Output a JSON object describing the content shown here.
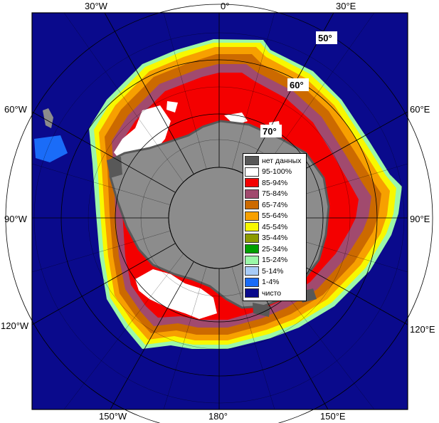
{
  "longitude_labels": {
    "w30": "30°W",
    "zero": "0°",
    "e30": "30°E",
    "w60": "60°W",
    "e60": "60°E",
    "w90": "90°W",
    "e90": "90°E",
    "w120": "120°W",
    "e120": "120°E",
    "w150": "150°W",
    "s180": "180°",
    "e150": "150°E"
  },
  "latitude_labels": {
    "lat50": "50°",
    "lat60": "60°",
    "lat70": "70°"
  },
  "colors": {
    "ocean": "#0a0a8c",
    "land": "#8c8c8c",
    "no_data": "#585858",
    "ice_95": "#ffffff",
    "ice_85": "#f40000",
    "ice_75": "#a14a6e",
    "ice_65": "#cc6a00",
    "ice_55": "#f7a000",
    "ice_45": "#f8f800",
    "ice_35": "#8c9a00",
    "ice_25": "#00a000",
    "ice_15": "#9bf8a8",
    "ice_5": "#a8ccf8",
    "ice_1": "#1a6cf8",
    "clear": "#0a0a8c"
  },
  "legend": [
    {
      "label": "нет данных",
      "color": "#585858"
    },
    {
      "label": "95-100%",
      "color": "#ffffff"
    },
    {
      "label": "85-94%",
      "color": "#f40000"
    },
    {
      "label": "75-84%",
      "color": "#a14a6e"
    },
    {
      "label": "65-74%",
      "color": "#cc6a00"
    },
    {
      "label": "55-64%",
      "color": "#f7a000"
    },
    {
      "label": "45-54%",
      "color": "#f8f800"
    },
    {
      "label": "35-44%",
      "color": "#8c9a00"
    },
    {
      "label": "25-34%",
      "color": "#00a000"
    },
    {
      "label": "15-24%",
      "color": "#9bf8a8"
    },
    {
      "label": "5-14%",
      "color": "#a8ccf8"
    },
    {
      "label": "1-4%",
      "color": "#1a6cf8"
    },
    {
      "label": "чисто",
      "color": "#0a0a8c"
    }
  ]
}
